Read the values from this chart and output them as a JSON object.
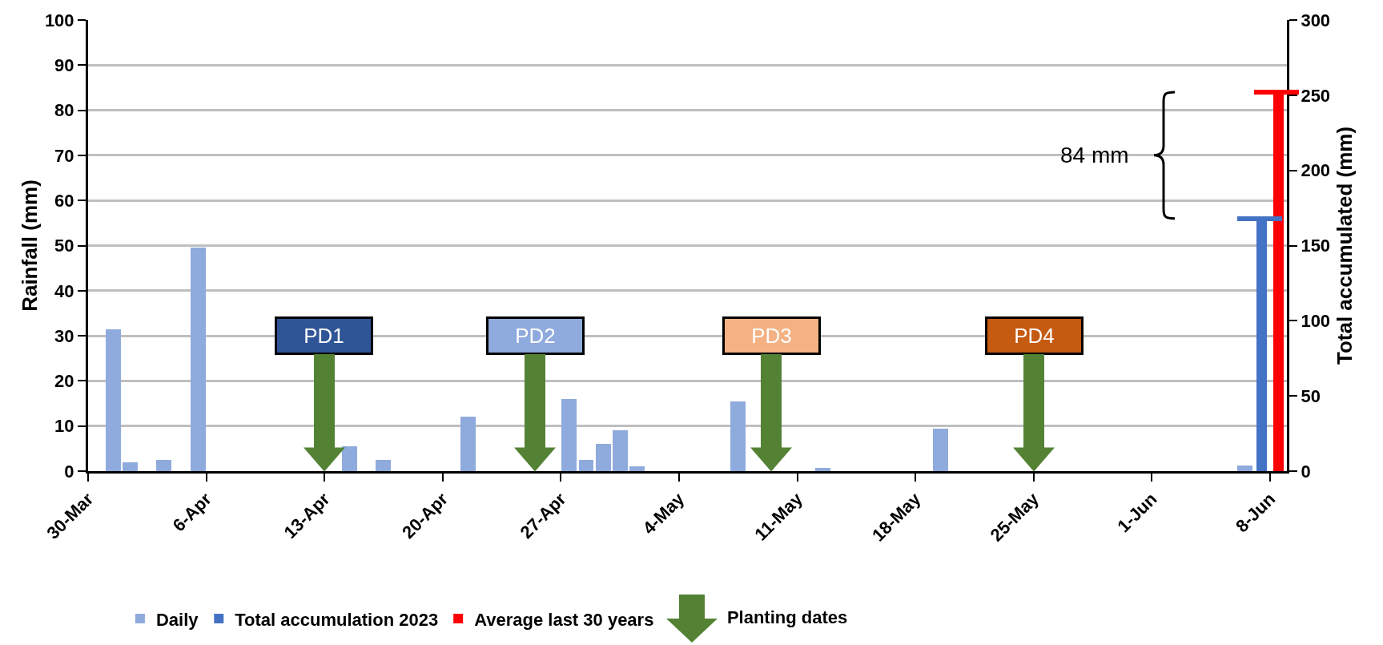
{
  "chart_data": {
    "type": "bar",
    "ylabel": "Rainfall (mm)",
    "y2label": "Total accumulated (mm)",
    "ylim": [
      0,
      100
    ],
    "yticks": [
      0,
      10,
      20,
      30,
      40,
      50,
      60,
      70,
      80,
      90,
      100
    ],
    "y2lim": [
      0,
      300
    ],
    "y2ticks": [
      0,
      50,
      100,
      150,
      200,
      250,
      300
    ],
    "xlim": [
      "--03-30",
      "--06-09"
    ],
    "xticks": [
      {
        "value": "--03-30",
        "label": "30-Mar"
      },
      {
        "value": "--04-06",
        "label": "6-Apr"
      },
      {
        "value": "--04-13",
        "label": "13-Apr"
      },
      {
        "value": "--04-20",
        "label": "20-Apr"
      },
      {
        "value": "--04-27",
        "label": "27-Apr"
      },
      {
        "value": "--05-04",
        "label": "4-May"
      },
      {
        "value": "--05-11",
        "label": "11-May"
      },
      {
        "value": "--05-18",
        "label": "18-May"
      },
      {
        "value": "--05-25",
        "label": "25-May"
      },
      {
        "value": "--06-01",
        "label": "1-Jun"
      },
      {
        "value": "--06-08",
        "label": "8-Jun"
      }
    ],
    "series": [
      {
        "name": "Daily",
        "color": "#8faadc",
        "x": [
          "--03-31",
          "--04-01",
          "--04-03",
          "--04-05",
          "--04-14",
          "--04-16",
          "--04-21",
          "--04-27",
          "--04-28",
          "--04-29",
          "--04-30",
          "--05-01",
          "--05-07",
          "--05-12",
          "--05-19",
          "--06-06"
        ],
        "values": [
          31.5,
          2,
          2.5,
          49.5,
          5.5,
          2.5,
          12,
          16,
          2.5,
          6,
          9,
          1,
          15.5,
          0.8,
          9.5,
          1.2
        ]
      },
      {
        "name": "Total accumulation 2023",
        "color": "#4472c4",
        "axis": "y2",
        "x": [
          "--06-07"
        ],
        "values": [
          168
        ]
      },
      {
        "name": "Average last 30 years",
        "color": "#ff0000",
        "axis": "y2",
        "x": [
          "--06-08"
        ],
        "values": [
          252
        ]
      }
    ],
    "annotations": [
      "PD1",
      "PD2",
      "PD3",
      "PD4",
      "84 mm",
      "Planting dates"
    ],
    "grid": "y",
    "legend": "bottom"
  }
}
